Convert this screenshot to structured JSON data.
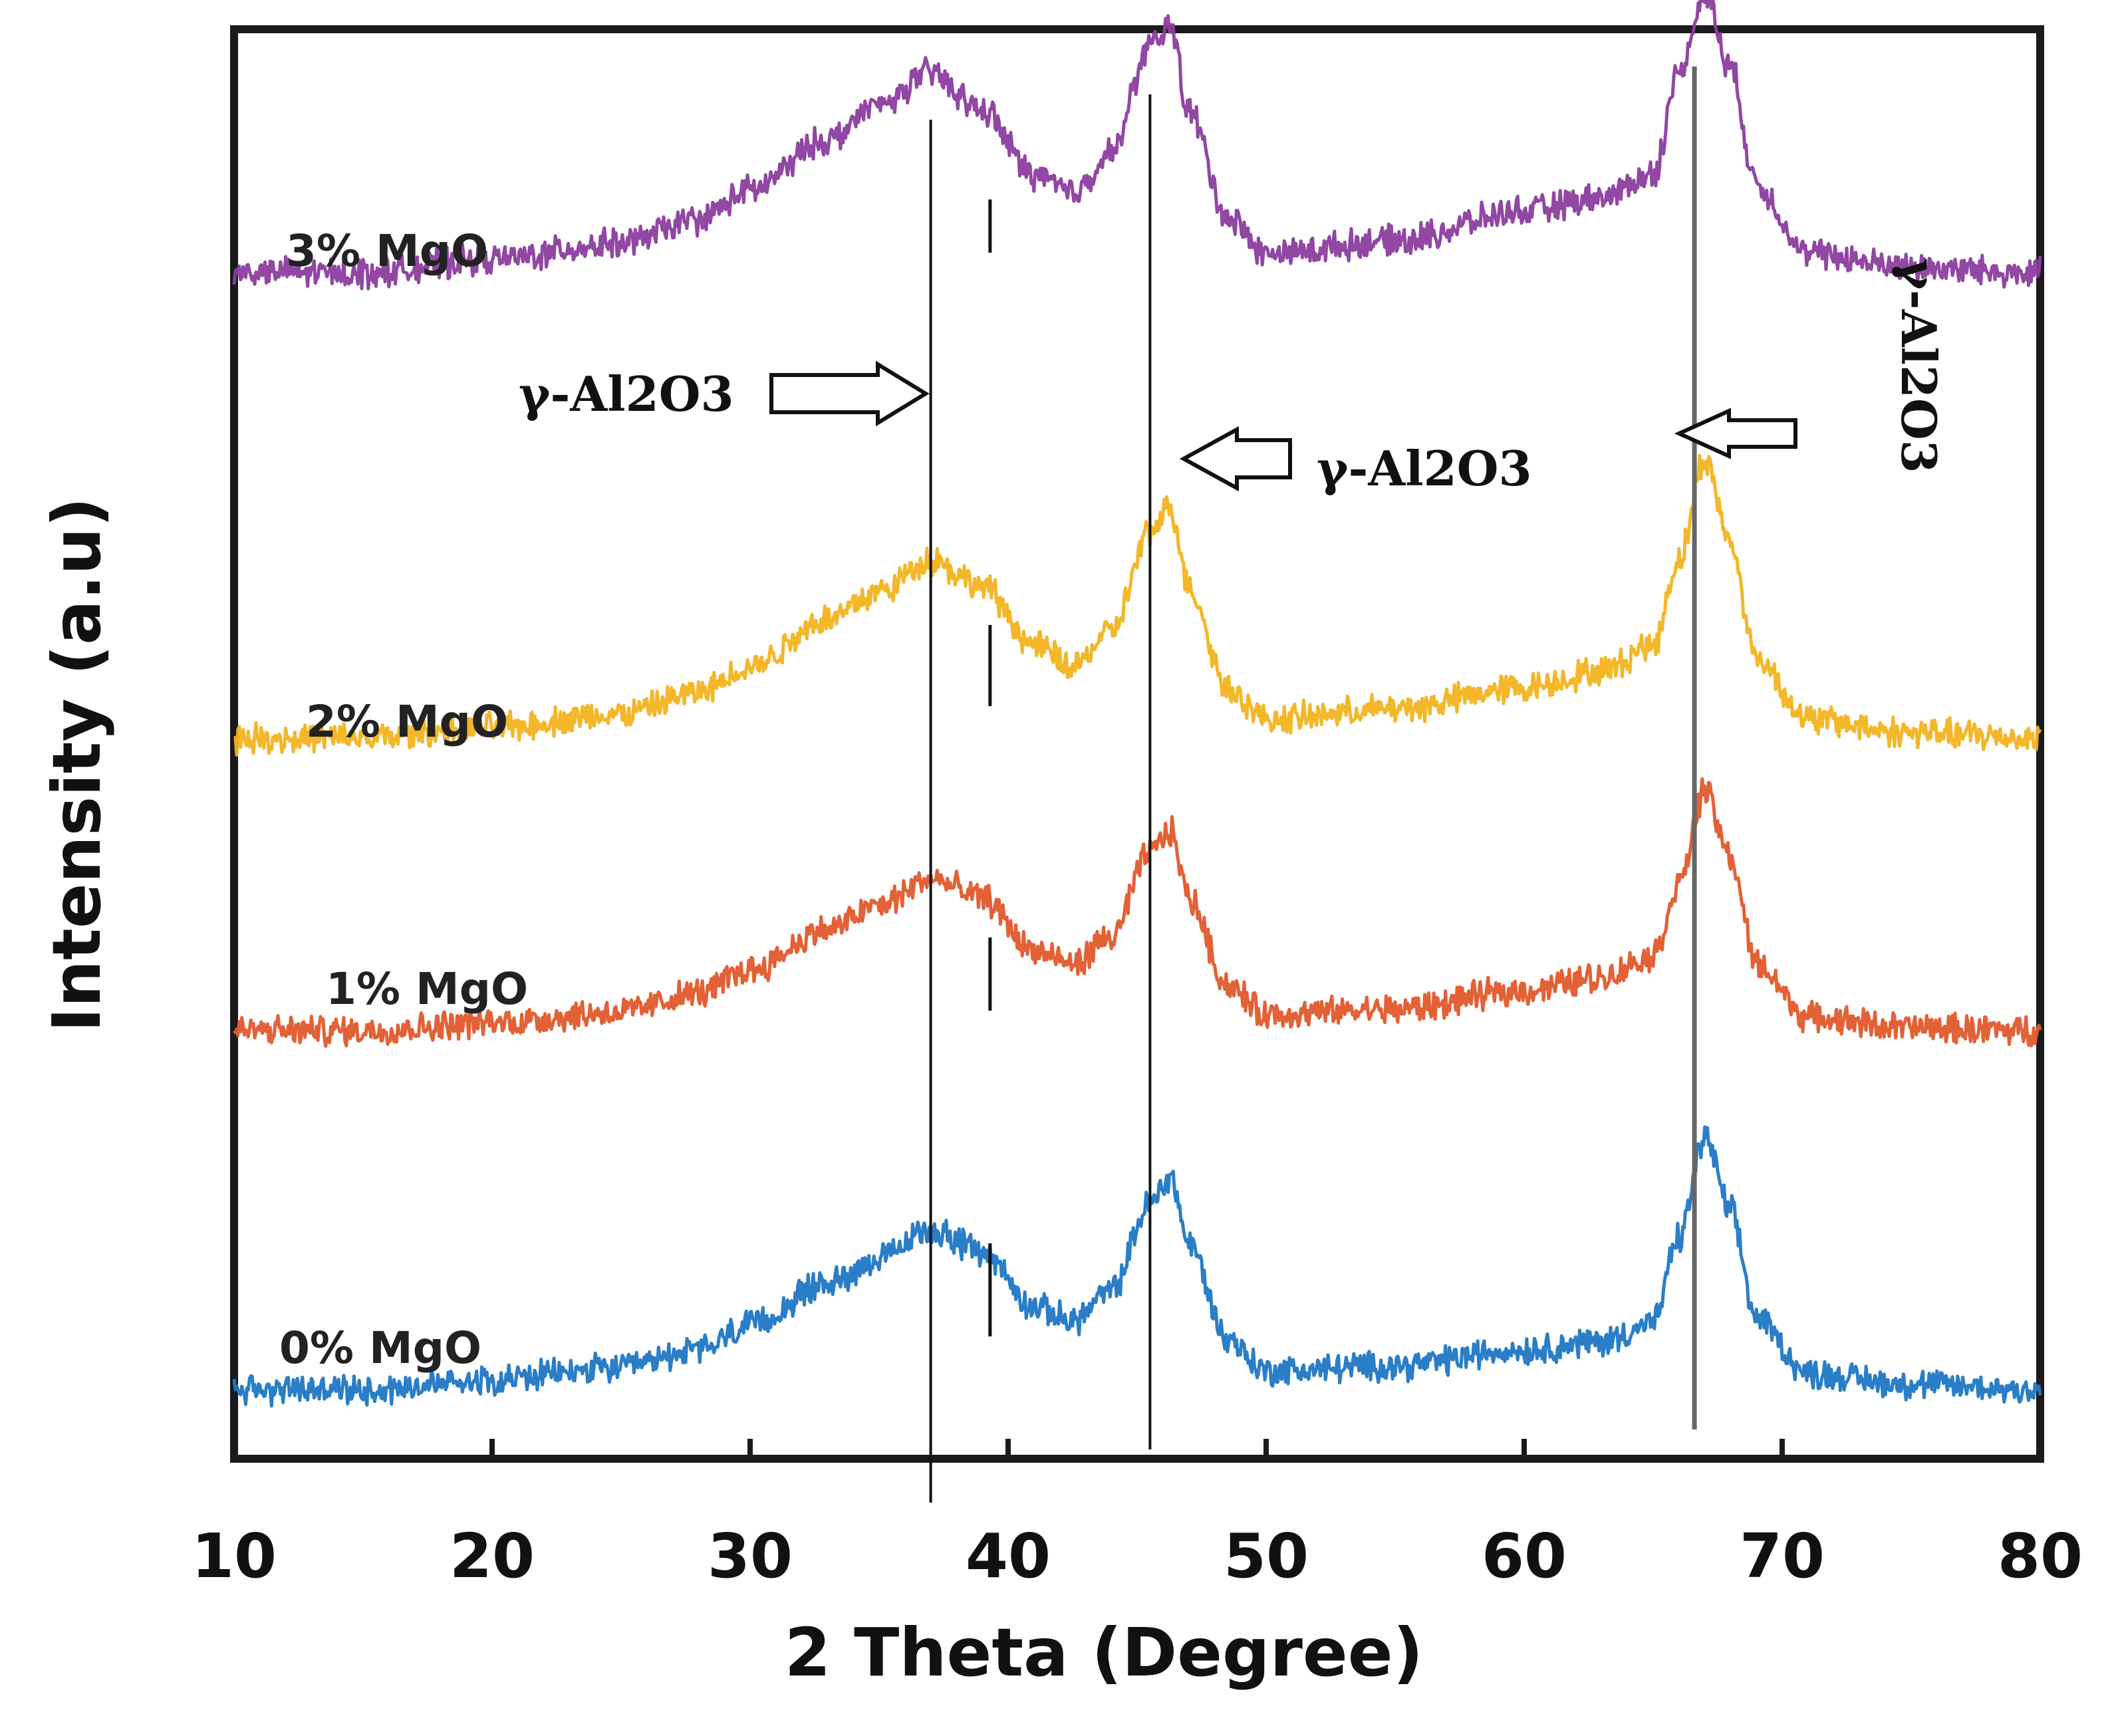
{
  "chart_data": {
    "type": "line",
    "title": "",
    "xlabel": "2 Theta (Degree)",
    "ylabel": "Intensity (a.u)",
    "xlim": [
      10,
      80
    ],
    "xticks": [
      10,
      20,
      30,
      40,
      50,
      60,
      70,
      80
    ],
    "yticks_shown": false,
    "grid": false,
    "legend": "none (series labelled inline on the left)",
    "series_order_bottom_to_top": [
      "0% MgO",
      "1% MgO",
      "2% MgO",
      "3% MgO"
    ],
    "series": [
      {
        "name": "0% MgO",
        "color": "#1f77c4",
        "offset": 0,
        "x": [
          10,
          15,
          20,
          25,
          28,
          30,
          33,
          35,
          37,
          39,
          41,
          42.5,
          44,
          45.5,
          46.3,
          47,
          48.5,
          50,
          55,
          60,
          63,
          65,
          66,
          67,
          68,
          69,
          71,
          75,
          80
        ],
        "y": [
          0.05,
          0.05,
          0.09,
          0.13,
          0.2,
          0.29,
          0.45,
          0.54,
          0.65,
          0.57,
          0.36,
          0.31,
          0.42,
          0.75,
          0.85,
          0.6,
          0.24,
          0.12,
          0.14,
          0.2,
          0.23,
          0.3,
          0.62,
          1.0,
          0.72,
          0.32,
          0.11,
          0.07,
          0.05
        ]
      },
      {
        "name": "1% MgO",
        "color": "#e2582b",
        "offset": 1.35,
        "x": [
          10,
          15,
          20,
          25,
          28,
          30,
          33,
          35,
          37,
          39,
          41,
          42.5,
          44,
          45.5,
          46.3,
          47,
          48.5,
          50,
          55,
          60,
          63,
          65,
          66,
          67,
          68,
          69,
          71,
          75,
          80
        ],
        "y": [
          0.05,
          0.05,
          0.08,
          0.12,
          0.19,
          0.28,
          0.43,
          0.52,
          0.62,
          0.55,
          0.35,
          0.3,
          0.4,
          0.72,
          0.8,
          0.55,
          0.22,
          0.11,
          0.13,
          0.2,
          0.25,
          0.33,
          0.6,
          0.95,
          0.7,
          0.3,
          0.1,
          0.06,
          0.05
        ]
      },
      {
        "name": "2% MgO",
        "color": "#f2b31e",
        "offset": 2.45,
        "x": [
          10,
          15,
          20,
          25,
          28,
          30,
          33,
          35,
          37,
          39,
          41,
          42.5,
          44,
          45.5,
          46.3,
          47,
          48.5,
          50,
          55,
          60,
          63,
          65,
          66,
          67,
          68,
          69,
          71,
          75,
          80
        ],
        "y": [
          0.05,
          0.05,
          0.09,
          0.14,
          0.22,
          0.32,
          0.5,
          0.6,
          0.72,
          0.62,
          0.4,
          0.32,
          0.45,
          0.82,
          0.92,
          0.62,
          0.24,
          0.12,
          0.16,
          0.24,
          0.3,
          0.4,
          0.72,
          1.1,
          0.78,
          0.35,
          0.12,
          0.07,
          0.05
        ]
      },
      {
        "name": "3% MgO",
        "color": "#8b3d9e",
        "offset": 4.2,
        "x": [
          10,
          15,
          20,
          25,
          28,
          30,
          33,
          35,
          37,
          39,
          41,
          42.5,
          44,
          45.5,
          46.3,
          47,
          48.5,
          50,
          55,
          60,
          63,
          65,
          66,
          67,
          68,
          69,
          71,
          75,
          80
        ],
        "y": [
          0.05,
          0.05,
          0.1,
          0.16,
          0.25,
          0.36,
          0.55,
          0.68,
          0.8,
          0.66,
          0.42,
          0.35,
          0.5,
          0.9,
          0.98,
          0.66,
          0.26,
          0.12,
          0.17,
          0.28,
          0.33,
          0.42,
          0.8,
          1.1,
          0.82,
          0.38,
          0.12,
          0.07,
          0.05
        ]
      }
    ],
    "reference_lines_x": [
      37.0,
      45.5,
      66.6
    ],
    "marker_ticks_x": 39.3,
    "annotations": [
      {
        "text": "γ-Al2O3",
        "arrow_to_x": 37.0,
        "arrow_direction": "right"
      },
      {
        "text": "γ-Al2O3",
        "arrow_to_x": 45.5,
        "arrow_direction": "left"
      },
      {
        "text": "γ-Al2O3",
        "arrow_to_x": 66.6,
        "arrow_direction": "left",
        "text_orientation": "vertical"
      }
    ]
  }
}
